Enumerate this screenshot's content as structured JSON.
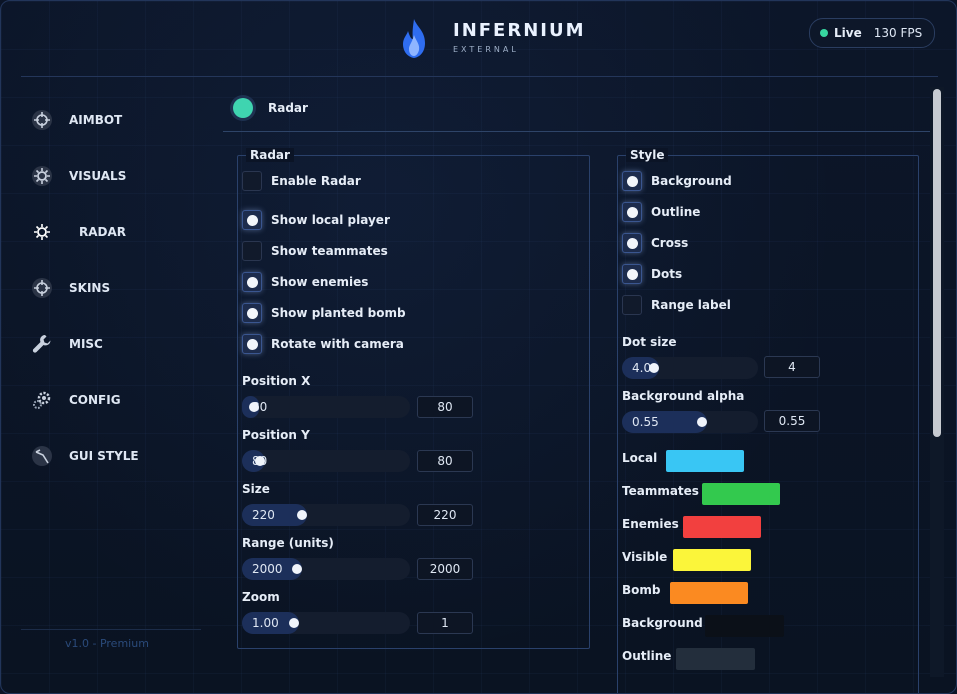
{
  "header": {
    "brand": "INFERNIUM",
    "subtitle": "EXTERNAL",
    "live_label": "Live",
    "fps": "130 FPS"
  },
  "sidebar": {
    "items": [
      {
        "label": "AIMBOT",
        "icon": "crosshair-icon"
      },
      {
        "label": "VISUALS",
        "icon": "sun-icon"
      },
      {
        "label": "RADAR",
        "icon": "sun-icon",
        "active": true
      },
      {
        "label": "SKINS",
        "icon": "crosshair-icon"
      },
      {
        "label": "MISC",
        "icon": "wrench-icon"
      },
      {
        "label": "CONFIG",
        "icon": "gears-icon"
      },
      {
        "label": "GUI STYLE",
        "icon": "brush-icon"
      }
    ],
    "version": "v1.0 - Premium"
  },
  "page": {
    "title": "Radar"
  },
  "radar_group": {
    "title": "Radar",
    "checkboxes": [
      {
        "label": "Enable Radar",
        "checked": false
      },
      {
        "label": "Show local player",
        "checked": true
      },
      {
        "label": "Show teammates",
        "checked": false
      },
      {
        "label": "Show enemies",
        "checked": true
      },
      {
        "label": "Show planted bomb",
        "checked": true
      },
      {
        "label": "Rotate with camera",
        "checked": true
      }
    ],
    "sliders": [
      {
        "label": "Position X",
        "value": "80",
        "input": "80",
        "fraction": 0.04
      },
      {
        "label": "Position Y",
        "value": "80",
        "input": "80",
        "fraction": 0.08
      },
      {
        "label": "Size",
        "value": "220",
        "input": "220",
        "fraction": 0.33
      },
      {
        "label": "Range (units)",
        "value": "2000",
        "input": "2000",
        "fraction": 0.3
      },
      {
        "label": "Zoom",
        "value": "1.00",
        "input": "1",
        "fraction": 0.28
      }
    ]
  },
  "style_group": {
    "title": "Style",
    "checkboxes": [
      {
        "label": "Background",
        "checked": true
      },
      {
        "label": "Outline",
        "checked": true
      },
      {
        "label": "Cross",
        "checked": true
      },
      {
        "label": "Dots",
        "checked": true
      },
      {
        "label": "Range label",
        "checked": false
      }
    ],
    "sliders": [
      {
        "label": "Dot size",
        "value": "4.0",
        "input": "4",
        "fraction": 0.2
      },
      {
        "label": "Background alpha",
        "value": "0.55",
        "input": "0.55",
        "fraction": 0.55
      }
    ],
    "colors": [
      {
        "label": "Local",
        "color": "#39c6f4"
      },
      {
        "label": "Teammates",
        "color": "#33c94e"
      },
      {
        "label": "Enemies",
        "color": "#f2403f"
      },
      {
        "label": "Visible",
        "color": "#fbf53a"
      },
      {
        "label": "Bomb",
        "color": "#fb8a21"
      },
      {
        "label": "Background",
        "color": "#0b1018"
      },
      {
        "label": "Outline",
        "color": "#232e3c"
      }
    ]
  }
}
